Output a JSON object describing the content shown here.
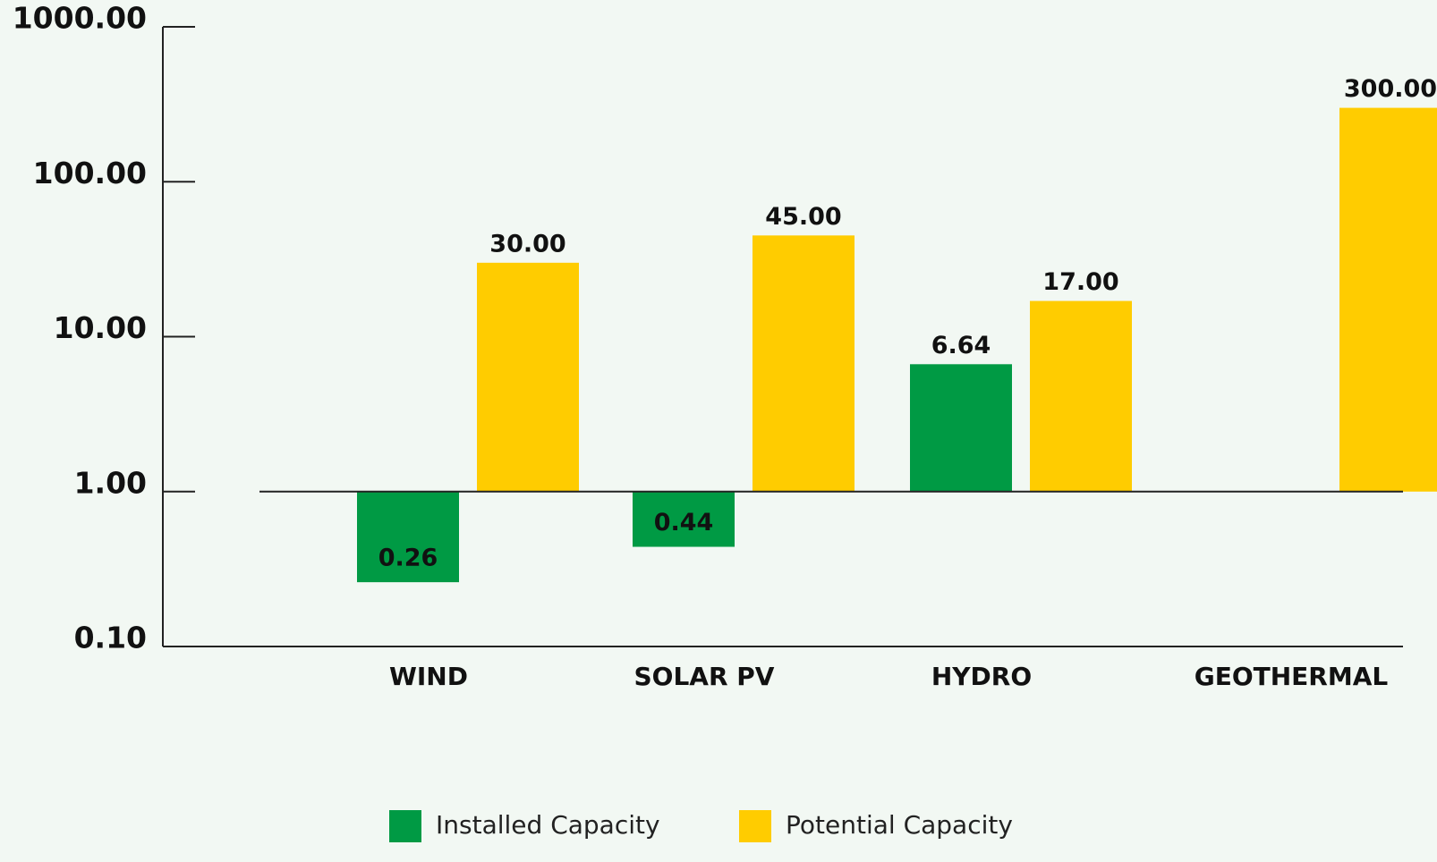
{
  "chart_data": {
    "type": "bar",
    "log_scale": true,
    "categories": [
      "WIND",
      "SOLAR PV",
      "HYDRO",
      "GEOTHERMAL"
    ],
    "series": [
      {
        "name": "Installed Capacity",
        "color": "#009a44",
        "values": [
          0.26,
          0.44,
          6.64,
          null
        ],
        "value_labels": [
          "0.26",
          "0.44",
          "6.64",
          null
        ]
      },
      {
        "name": "Potential Capacity",
        "color": "#ffcc00",
        "values": [
          30,
          45,
          17,
          300
        ],
        "value_labels": [
          "30.00",
          "45.00",
          "17.00",
          "300.00"
        ]
      }
    ],
    "ylim": [
      0.1,
      1000
    ],
    "yticks": [
      {
        "value": 1000,
        "label": "1000.00"
      },
      {
        "value": 100,
        "label": "100.00"
      },
      {
        "value": 10,
        "label": "10.00"
      },
      {
        "value": 1,
        "label": "1.00"
      },
      {
        "value": 0.1,
        "label": "0.10"
      }
    ]
  }
}
